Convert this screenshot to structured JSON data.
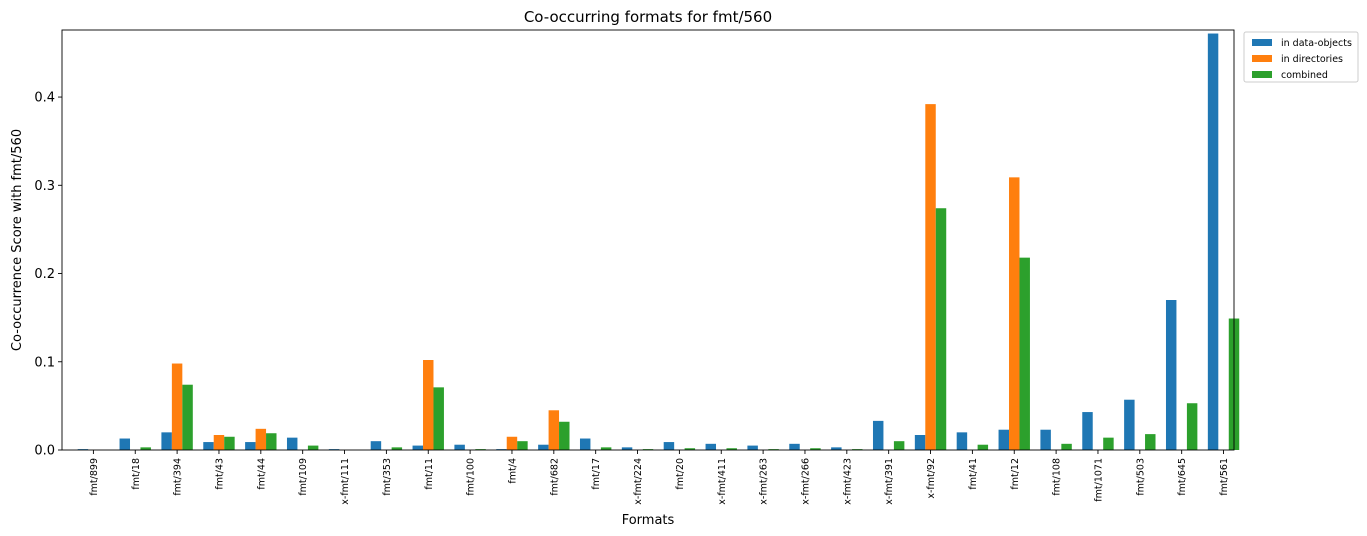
{
  "chart_data": {
    "type": "bar",
    "title": "Co-occurring formats for fmt/560",
    "xlabel": "Formats",
    "ylabel": "Co-occurrence Score with fmt/560",
    "ylim": [
      0,
      0.476
    ],
    "yticks": [
      "0.0",
      "0.1",
      "0.2",
      "0.3",
      "0.4"
    ],
    "legend_position": "top-right, outside plot",
    "grid": false,
    "categories": [
      "fmt/899",
      "fmt/18",
      "fmt/394",
      "fmt/43",
      "fmt/44",
      "fmt/109",
      "x-fmt/111",
      "fmt/353",
      "fmt/11",
      "fmt/100",
      "fmt/4",
      "fmt/682",
      "fmt/17",
      "x-fmt/224",
      "fmt/20",
      "x-fmt/411",
      "x-fmt/263",
      "x-fmt/266",
      "x-fmt/423",
      "x-fmt/391",
      "x-fmt/92",
      "fmt/41",
      "fmt/12",
      "fmt/108",
      "fmt/1071",
      "fmt/503",
      "fmt/645",
      "fmt/561"
    ],
    "series": [
      {
        "name": "in data-objects",
        "color": "#1f77b4",
        "values": [
          0.001,
          0.013,
          0.02,
          0.009,
          0.009,
          0.014,
          0.001,
          0.01,
          0.005,
          0.006,
          0.001,
          0.006,
          0.013,
          0.003,
          0.009,
          0.007,
          0.005,
          0.007,
          0.003,
          0.033,
          0.017,
          0.02,
          0.023,
          0.023,
          0.043,
          0.057,
          0.17,
          0.472
        ]
      },
      {
        "name": "in directories",
        "color": "#ff7f0e",
        "values": [
          0.0,
          0.0,
          0.098,
          0.017,
          0.024,
          0.0,
          0.0,
          0.0,
          0.102,
          0.0,
          0.015,
          0.045,
          0.0,
          0.0,
          0.0,
          0.0,
          0.0,
          0.0,
          0.0,
          0.0,
          0.392,
          0.0,
          0.309,
          0.0,
          0.0,
          0.0,
          0.0,
          0.0
        ]
      },
      {
        "name": "combined",
        "color": "#2ca02c",
        "values": [
          0.0,
          0.003,
          0.074,
          0.015,
          0.019,
          0.005,
          0.0,
          0.003,
          0.071,
          0.001,
          0.01,
          0.032,
          0.003,
          0.001,
          0.002,
          0.002,
          0.001,
          0.002,
          0.001,
          0.01,
          0.274,
          0.006,
          0.218,
          0.007,
          0.014,
          0.018,
          0.053,
          0.149
        ]
      }
    ]
  }
}
